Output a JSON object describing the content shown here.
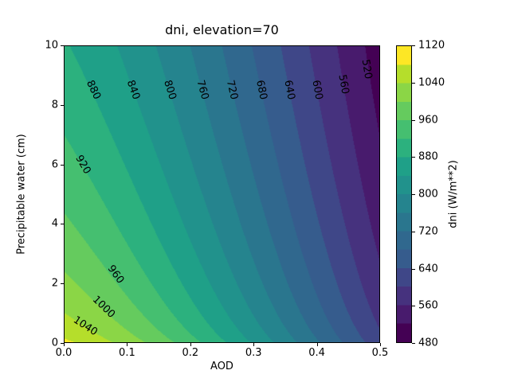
{
  "chart_data": {
    "type": "contour",
    "title": "dni, elevation=70",
    "xlabel": "AOD",
    "ylabel": "Precipitable water (cm)",
    "xlim": [
      0,
      0.5
    ],
    "ylim": [
      0,
      10
    ],
    "x_ticks": [
      "0.0",
      "0.1",
      "0.2",
      "0.3",
      "0.4",
      "0.5"
    ],
    "y_ticks": [
      "0",
      "2",
      "4",
      "6",
      "8",
      "10"
    ],
    "grid": false,
    "colormap": "viridis",
    "level_min": 480,
    "level_max": 1120,
    "level_step": 40,
    "band_colors": [
      "#440154",
      "#481b6d",
      "#46327e",
      "#3f4788",
      "#365c8d",
      "#30688e",
      "#2a768e",
      "#25848e",
      "#21928c",
      "#1fa088",
      "#2cb17e",
      "#45bf70",
      "#65cb5e",
      "#8bd646",
      "#b5de2b",
      "#fde725"
    ],
    "colorbar": {
      "label": "dni (W/m**2)",
      "tick_labels": [
        "480",
        "560",
        "640",
        "720",
        "800",
        "880",
        "960",
        "1040",
        "1120"
      ],
      "tick_values": [
        480,
        560,
        640,
        720,
        800,
        880,
        960,
        1040,
        1120
      ],
      "min": 480,
      "max": 1120
    },
    "surface_model": {
      "formula": "dni(aod,pw) = 1138 * exp(-0.0787*sqrt(pw+0.3)) * exp(-(0.5*aod + 1.286*aod^2))",
      "D0": 1138,
      "c_w": 0.0787,
      "w_off": 0.3,
      "c_a1": 0.5,
      "c_a2": 1.286
    },
    "contour_labels": [
      {
        "level": "1040",
        "a": 0.0335,
        "w": 0.55,
        "rot": 33
      },
      {
        "level": "1000",
        "a": 0.0625,
        "w": 1.2,
        "rot": 44
      },
      {
        "level": "960",
        "a": 0.082,
        "w": 2.3,
        "rot": 54
      },
      {
        "level": "920",
        "a": 0.0296,
        "w": 6.0,
        "rot": 60
      },
      {
        "level": "880",
        "a": 0.046,
        "w": 8.5,
        "rot": 65
      },
      {
        "level": "840",
        "a": 0.11,
        "w": 8.5,
        "rot": 70
      },
      {
        "level": "800",
        "a": 0.168,
        "w": 8.5,
        "rot": 73
      },
      {
        "level": "760",
        "a": 0.219,
        "w": 8.5,
        "rot": 75
      },
      {
        "level": "720",
        "a": 0.266,
        "w": 8.5,
        "rot": 77
      },
      {
        "level": "680",
        "a": 0.312,
        "w": 8.5,
        "rot": 78
      },
      {
        "level": "640",
        "a": 0.357,
        "w": 8.5,
        "rot": 79
      },
      {
        "level": "600",
        "a": 0.4,
        "w": 8.5,
        "rot": 80
      },
      {
        "level": "560",
        "a": 0.442,
        "w": 8.7,
        "rot": 80
      },
      {
        "level": "520",
        "a": 0.478,
        "w": 9.2,
        "rot": 81
      }
    ]
  }
}
